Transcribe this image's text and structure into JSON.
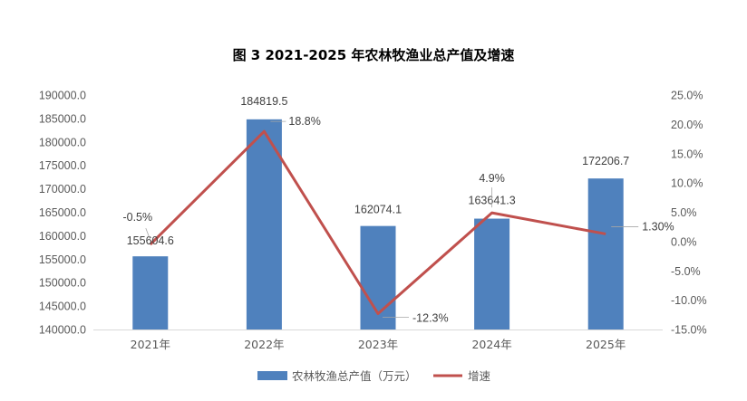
{
  "chart_data": {
    "type": "bar",
    "title": "图 3 2021-2025 年农林牧渔业总产值及增速",
    "categories": [
      "2021年",
      "2022年",
      "2023年",
      "2024年",
      "2025年"
    ],
    "series": [
      {
        "name": "农林牧渔总产值（万元）",
        "type": "bar",
        "axis": "left",
        "color": "#4f81bd",
        "values": [
          155604.6,
          184819.5,
          162074.1,
          163641.3,
          172206.7
        ],
        "labels": [
          "155604.6",
          "184819.5",
          "162074.1",
          "163641.3",
          "172206.7"
        ]
      },
      {
        "name": "增速",
        "type": "line",
        "axis": "right",
        "color": "#c0504d",
        "values": [
          -0.5,
          18.8,
          -12.3,
          4.9,
          1.3
        ],
        "labels": [
          "-0.5%",
          "18.8%",
          "-12.3%",
          "4.9%",
          "1.30%"
        ]
      }
    ],
    "y_left": {
      "min": 140000,
      "max": 190000,
      "step": 5000,
      "ticks": [
        "140000.0",
        "145000.0",
        "150000.0",
        "155000.0",
        "160000.0",
        "165000.0",
        "170000.0",
        "175000.0",
        "180000.0",
        "185000.0",
        "190000.0"
      ]
    },
    "y_right": {
      "min": -15,
      "max": 25,
      "step": 5,
      "ticks": [
        "-15.0%",
        "-10.0%",
        "-5.0%",
        "0.0%",
        "5.0%",
        "10.0%",
        "15.0%",
        "20.0%",
        "25.0%"
      ]
    },
    "legend_position": "bottom",
    "grid": false
  }
}
